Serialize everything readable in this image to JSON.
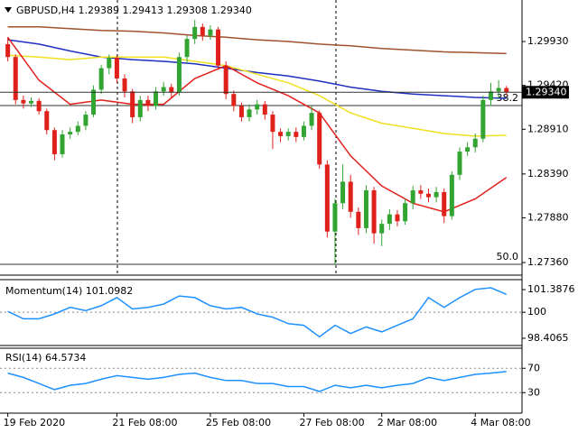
{
  "chart_data": [
    {
      "type": "candlestick",
      "title": "GBPUSD,H4  1.29389 1.29413 1.29308 1.29340",
      "open": [
        1.299,
        1.2975,
        1.2925,
        1.2921,
        1.2924,
        1.2912,
        1.289,
        1.2862,
        1.2885,
        1.2888,
        1.2895,
        1.2908,
        1.2937,
        1.2962,
        1.2974,
        1.295,
        1.2935,
        1.2905,
        1.2925,
        1.2918,
        1.2935,
        1.294,
        1.2934,
        1.2975,
        1.2996,
        1.301,
        1.3,
        1.3007,
        1.2965,
        1.2932,
        1.2918,
        1.2905,
        1.2914,
        1.292,
        1.2908,
        1.2888,
        1.2883,
        1.2888,
        1.2882,
        1.2895,
        1.291,
        1.285,
        1.2772,
        1.2805,
        1.283,
        1.2795,
        1.2776,
        1.282,
        1.277,
        1.2781,
        1.2792,
        1.2784,
        1.2805,
        1.282,
        1.2816,
        1.2812,
        1.2818,
        1.279,
        1.2838,
        1.2865,
        1.287,
        1.288,
        1.2925,
        1.2935,
        1.29389
      ],
      "high": [
        1.2998,
        1.2978,
        1.293,
        1.2928,
        1.2927,
        1.2915,
        1.2893,
        1.289,
        1.2893,
        1.29,
        1.2912,
        1.2942,
        1.2966,
        1.2978,
        1.2977,
        1.2955,
        1.2938,
        1.293,
        1.293,
        1.294,
        1.2946,
        1.2944,
        1.298,
        1.3,
        1.3018,
        1.3014,
        1.3012,
        1.301,
        1.297,
        1.2936,
        1.2922,
        1.292,
        1.2925,
        1.2924,
        1.2912,
        1.2892,
        1.2892,
        1.2893,
        1.29,
        1.2918,
        1.2913,
        1.2855,
        1.281,
        1.285,
        1.2838,
        1.28,
        1.2826,
        1.2824,
        1.2786,
        1.2798,
        1.2797,
        1.281,
        1.2825,
        1.2826,
        1.2822,
        1.2824,
        1.2822,
        1.2842,
        1.287,
        1.2876,
        1.2886,
        1.293,
        1.2945,
        1.2948,
        1.29413
      ],
      "low": [
        1.297,
        1.292,
        1.2915,
        1.2917,
        1.2908,
        1.2885,
        1.2855,
        1.2858,
        1.288,
        1.2884,
        1.289,
        1.2905,
        1.2932,
        1.2955,
        1.2945,
        1.2928,
        1.2898,
        1.29,
        1.2912,
        1.2914,
        1.293,
        1.2928,
        1.293,
        1.2968,
        1.299,
        1.2994,
        1.2995,
        1.296,
        1.2926,
        1.2912,
        1.29,
        1.29,
        1.2908,
        1.2902,
        1.2868,
        1.2876,
        1.2878,
        1.2876,
        1.2878,
        1.289,
        1.2845,
        1.2765,
        1.2733,
        1.2798,
        1.2788,
        1.2768,
        1.277,
        1.2758,
        1.2755,
        1.2774,
        1.2778,
        1.278,
        1.2798,
        1.281,
        1.2806,
        1.2806,
        1.2782,
        1.2786,
        1.2832,
        1.286,
        1.2864,
        1.2876,
        1.2918,
        1.2926,
        1.29308
      ],
      "close": [
        1.2975,
        1.2925,
        1.2921,
        1.2924,
        1.2912,
        1.289,
        1.2862,
        1.2885,
        1.2888,
        1.2895,
        1.2908,
        1.2937,
        1.2962,
        1.2974,
        1.295,
        1.2935,
        1.2905,
        1.2925,
        1.2918,
        1.2935,
        1.294,
        1.2934,
        1.2975,
        1.2996,
        1.301,
        1.3,
        1.3007,
        1.2965,
        1.2932,
        1.2918,
        1.2905,
        1.2914,
        1.292,
        1.2908,
        1.2888,
        1.2883,
        1.2888,
        1.2882,
        1.2895,
        1.291,
        1.285,
        1.2772,
        1.2805,
        1.283,
        1.2795,
        1.2776,
        1.282,
        1.277,
        1.2781,
        1.2792,
        1.2784,
        1.2805,
        1.282,
        1.2816,
        1.2812,
        1.2818,
        1.279,
        1.2838,
        1.2865,
        1.287,
        1.288,
        1.2925,
        1.2935,
        1.2939,
        1.2934
      ],
      "up_color": "#32a432",
      "down_color": "#e0201b",
      "series": [
        {
          "color": "#a0522d",
          "x": [
            0,
            4,
            8,
            12,
            16,
            20,
            24,
            28,
            32,
            36,
            40,
            44,
            48,
            52,
            56,
            60,
            64
          ],
          "values": [
            1.301,
            1.301,
            1.3008,
            1.3006,
            1.3005,
            1.3003,
            1.3,
            1.2998,
            1.2995,
            1.2993,
            1.299,
            1.2988,
            1.2985,
            1.2983,
            1.2981,
            1.298,
            1.2979
          ]
        },
        {
          "color": "#1f2fbf",
          "x": [
            0,
            4,
            8,
            12,
            16,
            20,
            24,
            28,
            32,
            36,
            40,
            44,
            48,
            52,
            56,
            60,
            64
          ],
          "values": [
            1.2995,
            1.299,
            1.2982,
            1.2975,
            1.2972,
            1.297,
            1.2967,
            1.2962,
            1.2957,
            1.2953,
            1.2947,
            1.294,
            1.2935,
            1.2932,
            1.293,
            1.2928,
            1.2927
          ]
        },
        {
          "color": "#f0e020",
          "x": [
            0,
            4,
            8,
            12,
            16,
            20,
            24,
            28,
            32,
            36,
            40,
            44,
            48,
            52,
            56,
            60,
            64
          ],
          "values": [
            1.2977,
            1.2975,
            1.2972,
            1.2975,
            1.2975,
            1.2975,
            1.297,
            1.2965,
            1.2955,
            1.2945,
            1.293,
            1.291,
            1.2898,
            1.2892,
            1.2886,
            1.2883,
            1.2884
          ]
        },
        {
          "color": "#e0201b",
          "x": [
            0,
            4,
            8,
            12,
            16,
            20,
            24,
            28,
            32,
            36,
            40,
            44,
            48,
            52,
            56,
            60,
            64
          ],
          "values": [
            1.2998,
            1.2948,
            1.292,
            1.2925,
            1.292,
            1.292,
            1.295,
            1.2965,
            1.2945,
            1.293,
            1.291,
            1.286,
            1.2825,
            1.2805,
            1.2795,
            1.281,
            1.2835
          ]
        }
      ],
      "current_price": {
        "value": 1.2934,
        "label": "1.29340"
      },
      "levels": [
        {
          "value": 1.29186,
          "label": "38.2"
        },
        {
          "value": 1.27339,
          "label": "50.0"
        }
      ],
      "ylim": [
        1.27266,
        1.30413
      ],
      "yticks": [
        {
          "value": 1.2993,
          "label": "1.29930"
        },
        {
          "value": 1.2942,
          "label": "1.29420"
        },
        {
          "value": 1.2891,
          "label": "1.28910"
        },
        {
          "value": 1.2839,
          "label": "1.28390"
        },
        {
          "value": 1.2788,
          "label": "1.27880"
        },
        {
          "value": 1.2736,
          "label": "1.27360"
        }
      ],
      "xlim": [
        -1,
        66
      ],
      "xticks": [
        {
          "value": 0,
          "label": "19 Feb 2020"
        },
        {
          "value": 14,
          "label": "21 Feb 08:00"
        },
        {
          "value": 26,
          "label": "25 Feb 08:00"
        },
        {
          "value": 38,
          "label": "27 Feb 08:00"
        },
        {
          "value": 48,
          "label": "2 Mar 08:00"
        },
        {
          "value": 60,
          "label": "4 Mar 08:00"
        }
      ]
    },
    {
      "type": "line",
      "title": "Momentum(14) 101.0982",
      "color": "#1e90ff",
      "x": [
        0,
        2,
        4,
        6,
        8,
        10,
        12,
        14,
        16,
        18,
        20,
        22,
        24,
        26,
        28,
        30,
        32,
        34,
        36,
        38,
        40,
        42,
        44,
        46,
        48,
        50,
        52,
        54,
        56,
        58,
        60,
        62,
        64
      ],
      "values": [
        100.05,
        99.6,
        99.6,
        99.9,
        100.3,
        100.1,
        100.4,
        100.9,
        100.2,
        100.3,
        100.5,
        101.0,
        100.9,
        100.4,
        100.2,
        100.3,
        99.9,
        99.7,
        99.3,
        99.2,
        98.5,
        99.2,
        98.7,
        99.1,
        98.8,
        99.2,
        99.6,
        100.9,
        100.3,
        100.9,
        101.4,
        101.5,
        101.0982
      ],
      "ylim": [
        98.129,
        101.832
      ],
      "yticks": [
        101.3876,
        100,
        98.4065
      ],
      "levels": [
        100
      ]
    },
    {
      "type": "line",
      "title": "RSI(14) 64.5734",
      "color": "#1e90ff",
      "x": [
        0,
        2,
        4,
        6,
        8,
        10,
        12,
        14,
        16,
        18,
        20,
        22,
        24,
        26,
        28,
        30,
        32,
        34,
        36,
        38,
        40,
        42,
        44,
        46,
        48,
        50,
        52,
        54,
        56,
        58,
        60,
        62,
        64
      ],
      "values": [
        62,
        55,
        45,
        35,
        42,
        45,
        52,
        58,
        55,
        52,
        55,
        60,
        62,
        55,
        50,
        50,
        45,
        45,
        40,
        40,
        32,
        42,
        38,
        42,
        38,
        42,
        45,
        55,
        50,
        55,
        60,
        62,
        64.5734
      ],
      "ylim": [
        0,
        100
      ],
      "yticks": [
        70,
        30
      ],
      "levels": [
        70,
        30
      ]
    }
  ]
}
